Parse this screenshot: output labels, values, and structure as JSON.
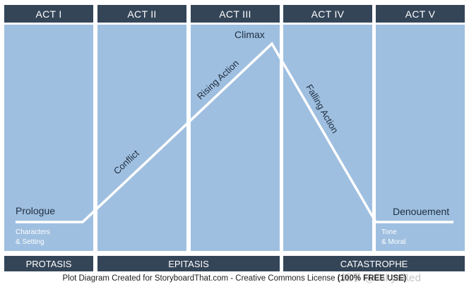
{
  "acts": [
    {
      "label": "ACT I"
    },
    {
      "label": "ACT II"
    },
    {
      "label": "ACT III"
    },
    {
      "label": "ACT IV"
    },
    {
      "label": "ACT V"
    }
  ],
  "phases": [
    {
      "label": "PROTASIS"
    },
    {
      "label": "EPITASIS"
    },
    {
      "label": "CATASTROPHE"
    }
  ],
  "plot_labels": {
    "prologue": "Prologue",
    "characters_line1": "Characters",
    "characters_line2": "& Setting",
    "conflict": "Conflict",
    "rising_action": "Rising Action",
    "climax": "Climax",
    "falling_action": "Falling Action",
    "denouement": "Denouement",
    "tone_line1": "Tone",
    "tone_line2": "& Moral"
  },
  "caption": {
    "text": "Plot Diagram Created for StoryboardThat.com - Creative Commons License",
    "bold": "(100% FREE USE)"
  },
  "watermark": "知乎 @TokyoRed",
  "colors": {
    "header_bg": "#344558",
    "panel_bg": "#9fbfe0",
    "plot_line": "#ffffff"
  }
}
